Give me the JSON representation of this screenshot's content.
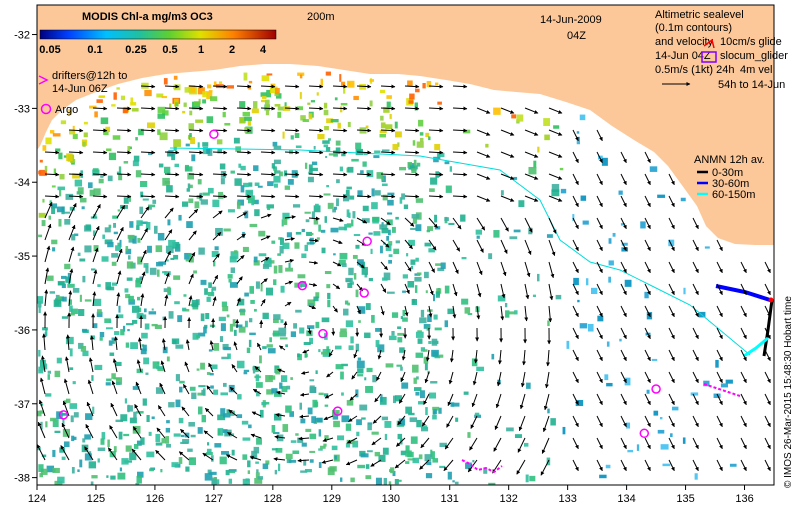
{
  "map": {
    "lon_ticks": [
      124,
      125,
      126,
      127,
      128,
      129,
      130,
      131,
      132,
      133,
      134,
      135,
      136
    ],
    "lat_ticks": [
      -32,
      -33,
      -34,
      -35,
      -36,
      -37,
      -38
    ],
    "lon_range": [
      124,
      136.5
    ],
    "lat_range": [
      -31.6,
      -38.1
    ]
  },
  "colorbar": {
    "title": "MODIS Chl-a mg/m3 OC3",
    "tick_labels": [
      "0.05",
      "0.1",
      "0.25",
      "0.5",
      "1",
      "2",
      "4"
    ]
  },
  "header": {
    "isobath_label": "200m",
    "date": "14-Jun-2009",
    "hour": "04Z"
  },
  "legend_left": {
    "drifters_line1": "drifters@12h to",
    "drifters_line2": "14-Jun 06Z",
    "argo_label": "Argo"
  },
  "legend_right": {
    "altimetric_line1": "Altimetric sealevel",
    "altimetric_line2": "(0.1m contours)",
    "altimetric_line3": "and velocity",
    "glide_label": "10cm/s glide",
    "date_line": "14-Jun 04Z",
    "slocum_label": "slocum_glider",
    "vel_line": "0.5m/s (1kt) 24h",
    "vel_line2": "4m vel",
    "hours_line": "54h to 14-Jun"
  },
  "anmn": {
    "title": "ANMN 12h av.",
    "items": [
      {
        "label": "0-30m",
        "color": "#000000"
      },
      {
        "label": "30-60m",
        "color": "#0000ff"
      },
      {
        "label": "60-150m",
        "color": "#00ffff"
      }
    ]
  },
  "credit": "© IMOS 26-Mar-2015 15:48:30 Hobart time",
  "colors": {
    "land": "#fcc89a",
    "argo": "#ff00ff",
    "drifter": "#ff00ff",
    "current_line": "#00dddd"
  },
  "argo_floats": [
    {
      "lon": 127.0,
      "lat": -33.35
    },
    {
      "lon": 129.6,
      "lat": -34.8
    },
    {
      "lon": 128.5,
      "lat": -35.4
    },
    {
      "lon": 129.55,
      "lat": -35.5
    },
    {
      "lon": 128.85,
      "lat": -36.05
    },
    {
      "lon": 129.1,
      "lat": -37.1
    },
    {
      "lon": 124.45,
      "lat": -37.15
    },
    {
      "lon": 134.5,
      "lat": -36.8
    },
    {
      "lon": 134.3,
      "lat": -37.4
    }
  ]
}
